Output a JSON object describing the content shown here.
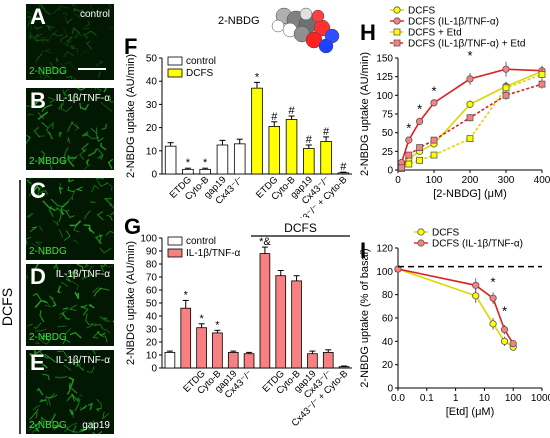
{
  "micrographs": [
    {
      "letter": "A",
      "condition": "control",
      "stain": "2-NBDG",
      "extra": ""
    },
    {
      "letter": "B",
      "condition": "IL-1β/TNF-α",
      "stain": "2-NBDG",
      "extra": ""
    },
    {
      "letter": "C",
      "condition": "",
      "stain": "2-NBDG",
      "extra": ""
    },
    {
      "letter": "D",
      "condition": "IL-1β/TNF-α",
      "stain": "2-NBDG",
      "extra": ""
    },
    {
      "letter": "E",
      "condition": "IL-1β/TNF-α",
      "stain": "2-NBDG",
      "extra": "gap19"
    }
  ],
  "side_label": "DCFS",
  "colors": {
    "control": "#ffffff",
    "dcfs": "#ffff00",
    "il": "#f88080",
    "red_line": "#e02020",
    "yellow_line": "#d8d800",
    "micro_bg": "#021802",
    "micro_cell": "#2fbf2f"
  },
  "chart_data": [
    {
      "panel": "F",
      "type": "bar",
      "title": "2-NBDG",
      "ylabel": "2-NBDG uptake (AU/min)",
      "ylim": [
        0,
        50
      ],
      "yticks": [
        "0",
        "10",
        "20",
        "30",
        "40",
        "50"
      ],
      "legend": [
        "control",
        "DCFS"
      ],
      "categories": [
        "",
        "ETDG",
        "Cyto-B",
        "gap19",
        "Cx43⁻/⁻",
        "",
        "ETDG",
        "Cyto-B",
        "gap19",
        "Cx43⁻/⁻",
        "Cx43⁻/⁻ + Cyto-B"
      ],
      "values": [
        12,
        2,
        2,
        12.5,
        13,
        37,
        20.5,
        23.5,
        11,
        14,
        0.5
      ],
      "errors": [
        1.5,
        0.5,
        0.5,
        2,
        2,
        2.5,
        2,
        1.5,
        1.5,
        2,
        0.3
      ],
      "groups": [
        "control",
        "control",
        "control",
        "control",
        "control",
        "DCFS",
        "DCFS",
        "DCFS",
        "DCFS",
        "DCFS",
        "DCFS"
      ],
      "marks": [
        "",
        "*",
        "*",
        "",
        "",
        "*",
        "#",
        "#",
        "#",
        "#",
        "#"
      ]
    },
    {
      "panel": "G",
      "type": "bar",
      "ylabel": "2-NBDG uptake (AU/min)",
      "ylim": [
        0,
        100
      ],
      "yticks": [
        "0",
        "10",
        "20",
        "30",
        "40",
        "50",
        "60",
        "70",
        "80",
        "90",
        "100"
      ],
      "legend": [
        "control",
        "IL-1β/TNF-α"
      ],
      "group_label": "DCFS",
      "categories": [
        "",
        "",
        "ETDG",
        "Cyto-B",
        "gap19",
        "Cx43⁻/⁻",
        "",
        "ETDG",
        "Cyto-B",
        "gap19",
        "Cx43⁻/⁻",
        "Cx43⁻/⁻ + Cyto-B"
      ],
      "values": [
        12,
        46,
        31,
        27,
        12,
        11,
        88,
        71,
        67,
        11,
        12,
        1
      ],
      "errors": [
        1,
        6,
        3,
        2,
        1,
        1,
        5,
        4,
        4,
        2,
        2,
        0.5
      ],
      "groups": [
        "control",
        "il",
        "il",
        "il",
        "il",
        "il",
        "il",
        "il",
        "il",
        "il",
        "il",
        "il"
      ],
      "marks": [
        "",
        "*",
        "*",
        "*",
        "",
        "",
        "*&",
        "",
        "",
        "",
        "",
        ""
      ]
    },
    {
      "panel": "H",
      "type": "line",
      "xlabel": "[2-NBDG] (μM)",
      "ylabel": "2-NBDG uptake (AU/min)",
      "xlim": [
        0,
        400
      ],
      "ylim": [
        0,
        150
      ],
      "xticks": [
        "0",
        "100",
        "200",
        "300",
        "400"
      ],
      "yticks": [
        "0",
        "25",
        "50",
        "75",
        "100",
        "125",
        "150"
      ],
      "series": [
        {
          "name": "DCFS",
          "x": [
            10,
            30,
            60,
            100,
            200,
            300,
            400
          ],
          "y": [
            3,
            15,
            25,
            35,
            88,
            112,
            132
          ],
          "err": [
            1,
            3,
            3,
            3,
            5,
            6,
            6
          ]
        },
        {
          "name": "DCFS (IL-1β/TNF-α)",
          "x": [
            10,
            30,
            60,
            100,
            200,
            300,
            400
          ],
          "y": [
            10,
            40,
            65,
            90,
            122,
            135,
            133
          ],
          "err": [
            2,
            4,
            5,
            5,
            8,
            10,
            7
          ]
        },
        {
          "name": "DCFS + Etd",
          "x": [
            10,
            30,
            60,
            100,
            200,
            300,
            400
          ],
          "y": [
            2,
            8,
            13,
            20,
            42,
            110,
            128
          ],
          "err": [
            1,
            2,
            2,
            3,
            4,
            8,
            8
          ]
        },
        {
          "name": "DCFS (IL-1β/TNF-α) + Etd",
          "x": [
            10,
            30,
            60,
            100,
            200,
            300,
            400
          ],
          "y": [
            3,
            20,
            30,
            40,
            70,
            100,
            115
          ],
          "err": [
            1,
            3,
            3,
            3,
            5,
            6,
            6
          ]
        }
      ],
      "marks": [
        {
          "x": 30,
          "y": 50,
          "t": "*"
        },
        {
          "x": 60,
          "y": 76,
          "t": "*"
        },
        {
          "x": 100,
          "y": 100,
          "t": "*"
        },
        {
          "x": 200,
          "y": 147,
          "t": "*"
        }
      ]
    },
    {
      "panel": "I",
      "type": "line",
      "xscale": "log",
      "xlabel": "[Etd] (μM)",
      "ylabel": "2-NBDG uptake (% of basal)",
      "xlim": [
        0.01,
        1000
      ],
      "ylim": [
        0,
        120
      ],
      "xticks": [
        "0.0",
        "0.1",
        "1",
        "10",
        "100",
        "1000"
      ],
      "yticks": [
        "0",
        "20",
        "40",
        "60",
        "80",
        "100",
        "120"
      ],
      "series": [
        {
          "name": "DCFS",
          "x": [
            0.01,
            5,
            20,
            50,
            100
          ],
          "y": [
            102,
            79,
            55,
            40,
            35
          ],
          "err": [
            3,
            6,
            5,
            4,
            3
          ]
        },
        {
          "name": "DCFS (IL-1β/TNF-α)",
          "x": [
            0.01,
            5,
            20,
            50,
            100
          ],
          "y": [
            102,
            88,
            77,
            50,
            38
          ],
          "err": [
            3,
            6,
            5,
            4,
            3
          ]
        }
      ],
      "marks": [
        {
          "x": 20,
          "y": 87,
          "t": "*"
        },
        {
          "x": 50,
          "y": 62,
          "t": "*"
        }
      ]
    }
  ]
}
